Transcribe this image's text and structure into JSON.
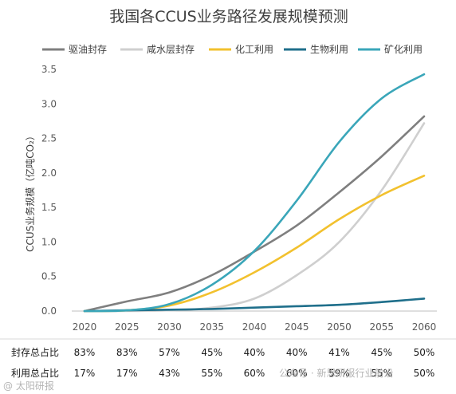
{
  "chart_data": {
    "type": "line",
    "title": "我国各CCUS业务路径发展规模预测",
    "ylabel": "CCUS业务规模（亿吨CO₂）",
    "xlabel": "",
    "x": [
      2020,
      2025,
      2030,
      2035,
      2040,
      2045,
      2050,
      2055,
      2060
    ],
    "ylim": [
      0,
      3.5
    ],
    "yticks": [
      "0.0",
      "0.5",
      "1.0",
      "1.5",
      "2.0",
      "2.5",
      "3.0",
      "3.5"
    ],
    "grid": false,
    "legend_position": "top",
    "series": [
      {
        "name": "驱油封存",
        "color": "#7f7f7f",
        "values": [
          0.0,
          0.14,
          0.27,
          0.52,
          0.86,
          1.24,
          1.72,
          2.24,
          2.82
        ]
      },
      {
        "name": "咸水层封存",
        "color": "#cfcfcf",
        "values": [
          0.0,
          0.0,
          0.01,
          0.05,
          0.18,
          0.52,
          1.0,
          1.75,
          2.72
        ]
      },
      {
        "name": "化工利用",
        "color": "#f2c12e",
        "values": [
          0.0,
          0.01,
          0.08,
          0.27,
          0.56,
          0.92,
          1.33,
          1.68,
          1.96
        ]
      },
      {
        "name": "生物利用",
        "color": "#1f6f8b",
        "values": [
          0.0,
          0.01,
          0.02,
          0.03,
          0.05,
          0.07,
          0.09,
          0.13,
          0.18
        ]
      },
      {
        "name": "矿化利用",
        "color": "#3aa6b9",
        "values": [
          0.0,
          0.01,
          0.1,
          0.38,
          0.87,
          1.6,
          2.45,
          3.08,
          3.43
        ]
      }
    ],
    "table": {
      "rows": [
        {
          "label": "封存总占比",
          "values": [
            "83%",
            "83%",
            "57%",
            "45%",
            "40%",
            "40%",
            "41%",
            "45%",
            "50%"
          ]
        },
        {
          "label": "利用总占比",
          "values": [
            "17%",
            "17%",
            "43%",
            "55%",
            "60%",
            "60%",
            "59%",
            "55%",
            "50%"
          ]
        }
      ]
    }
  },
  "watermark": {
    "left": "@ 太阳研报",
    "right": "公众号 · 新思研报行业前沿"
  }
}
